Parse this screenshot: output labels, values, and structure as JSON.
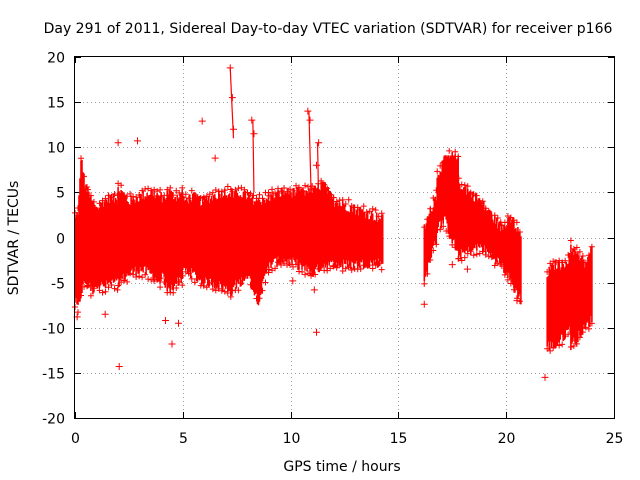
{
  "chart_data": {
    "type": "scatter",
    "title": "Day 291 of 2011, Sidereal Day-to-day VTEC variation (SDTVAR) for receiver p166",
    "xlabel": "GPS time / hours",
    "ylabel": "SDTVAR / TECUs",
    "xlim": [
      0,
      25
    ],
    "ylim": [
      -20,
      20
    ],
    "xticks": [
      0,
      5,
      10,
      15,
      20,
      25
    ],
    "yticks": [
      -20,
      -15,
      -10,
      -5,
      0,
      5,
      10,
      15,
      20
    ],
    "xtick_labels": [
      "0",
      "5",
      "10",
      "15",
      "20",
      "25"
    ],
    "ytick_labels": [
      "-20",
      "-15",
      "-10",
      "-5",
      "0",
      "5",
      "10",
      "15",
      "20"
    ],
    "grid": true,
    "marker": "+",
    "color": "#ff0000",
    "series": [
      {
        "name": "SDTVAR",
        "segments": [
          {
            "x_start": 0.0,
            "x_end": 0.6,
            "upper": [
              2,
              3,
              9,
              6,
              5
            ],
            "lower": [
              -7,
              -8,
              -6,
              -5,
              -5
            ]
          },
          {
            "x_start": 0.6,
            "x_end": 1.0,
            "upper": [
              5,
              4,
              3
            ],
            "lower": [
              -5,
              -6,
              -5
            ]
          },
          {
            "x_start": 1.0,
            "x_end": 2.0,
            "upper": [
              3,
              4,
              4.5,
              4
            ],
            "lower": [
              -5,
              -5.5,
              -5,
              -5
            ]
          },
          {
            "x_start": 2.0,
            "x_end": 4.0,
            "upper": [
              5.5,
              4,
              4.5,
              5,
              4.5
            ],
            "lower": [
              -5,
              -4,
              -3.5,
              -4,
              -5
            ]
          },
          {
            "x_start": 4.0,
            "x_end": 5.0,
            "upper": [
              4,
              5,
              4.5,
              5
            ],
            "lower": [
              -4,
              -6,
              -5,
              -4.5
            ]
          },
          {
            "x_start": 5.0,
            "x_end": 7.3,
            "upper": [
              4,
              4.5,
              4,
              4.5,
              5,
              5
            ],
            "lower": [
              -3.5,
              -4,
              -5,
              -5,
              -5.5,
              -6
            ]
          },
          {
            "x_start": 7.3,
            "x_end": 8.0,
            "upper": [
              4.5,
              5,
              4.5
            ],
            "lower": [
              -5.5,
              -5,
              -4
            ]
          },
          {
            "x_start": 8.0,
            "x_end": 9.0,
            "upper": [
              4.5,
              4,
              4.5
            ],
            "lower": [
              -4,
              -7,
              -3
            ]
          },
          {
            "x_start": 9.0,
            "x_end": 11.0,
            "upper": [
              4.5,
              5,
              5,
              5
            ],
            "lower": [
              -3,
              -2.5,
              -3,
              -4
            ]
          },
          {
            "x_start": 11.0,
            "x_end": 12.0,
            "upper": [
              5,
              6,
              4
            ],
            "lower": [
              -4,
              -3,
              -3
            ]
          },
          {
            "x_start": 12.0,
            "x_end": 14.3,
            "upper": [
              4,
              3.5,
              3,
              2.5,
              2
            ],
            "lower": [
              -3,
              -3,
              -3,
              -2.8,
              -2.8
            ]
          },
          {
            "x_start": 16.2,
            "x_end": 16.8,
            "upper": [
              1,
              3,
              5
            ],
            "lower": [
              -5,
              -2,
              0
            ]
          },
          {
            "x_start": 16.8,
            "x_end": 17.8,
            "upper": [
              7,
              8.5,
              9,
              8.5
            ],
            "lower": [
              1,
              2,
              0,
              -2
            ]
          },
          {
            "x_start": 17.8,
            "x_end": 19.8,
            "upper": [
              6,
              5,
              4,
              2.5,
              1
            ],
            "lower": [
              -2,
              -1.5,
              -1,
              -2,
              -3
            ]
          },
          {
            "x_start": 19.8,
            "x_end": 20.7,
            "upper": [
              1,
              2,
              0
            ],
            "lower": [
              -3,
              -5,
              -7
            ]
          },
          {
            "x_start": 21.9,
            "x_end": 23.0,
            "upper": [
              -4,
              -3,
              -3,
              -2
            ],
            "lower": [
              -12,
              -12,
              -11,
              -10
            ]
          },
          {
            "x_start": 23.0,
            "x_end": 24.0,
            "upper": [
              -1,
              -2,
              -3,
              -1
            ],
            "lower": [
              -12,
              -11,
              -10,
              -9
            ]
          }
        ],
        "outliers": [
          {
            "x": 7.2,
            "y": 18.8
          },
          {
            "x": 7.3,
            "y": 15.5
          },
          {
            "x": 7.35,
            "y": 12.0
          },
          {
            "x": 10.8,
            "y": 14.0
          },
          {
            "x": 10.9,
            "y": 13.0
          },
          {
            "x": 8.2,
            "y": 13.0
          },
          {
            "x": 8.3,
            "y": 11.5
          },
          {
            "x": 5.9,
            "y": 12.9
          },
          {
            "x": 2.0,
            "y": 10.5
          },
          {
            "x": 2.9,
            "y": 10.7
          },
          {
            "x": 11.3,
            "y": 10.5
          },
          {
            "x": 6.5,
            "y": 8.8
          },
          {
            "x": 11.2,
            "y": 8.0
          },
          {
            "x": 11.1,
            "y": -5.8
          },
          {
            "x": 11.2,
            "y": -10.5
          },
          {
            "x": 4.5,
            "y": -11.8
          },
          {
            "x": 2.05,
            "y": -14.3
          },
          {
            "x": 21.8,
            "y": -15.5
          },
          {
            "x": 0.1,
            "y": -8.8
          },
          {
            "x": 1.4,
            "y": -8.5
          },
          {
            "x": 4.2,
            "y": -9.2
          },
          {
            "x": 4.8,
            "y": -9.5
          },
          {
            "x": 10.1,
            "y": -4.8
          },
          {
            "x": 18.2,
            "y": -3.5
          },
          {
            "x": 17.5,
            "y": -3.0
          },
          {
            "x": 16.2,
            "y": -7.4
          },
          {
            "x": 20.5,
            "y": -7.0
          }
        ]
      }
    ]
  }
}
